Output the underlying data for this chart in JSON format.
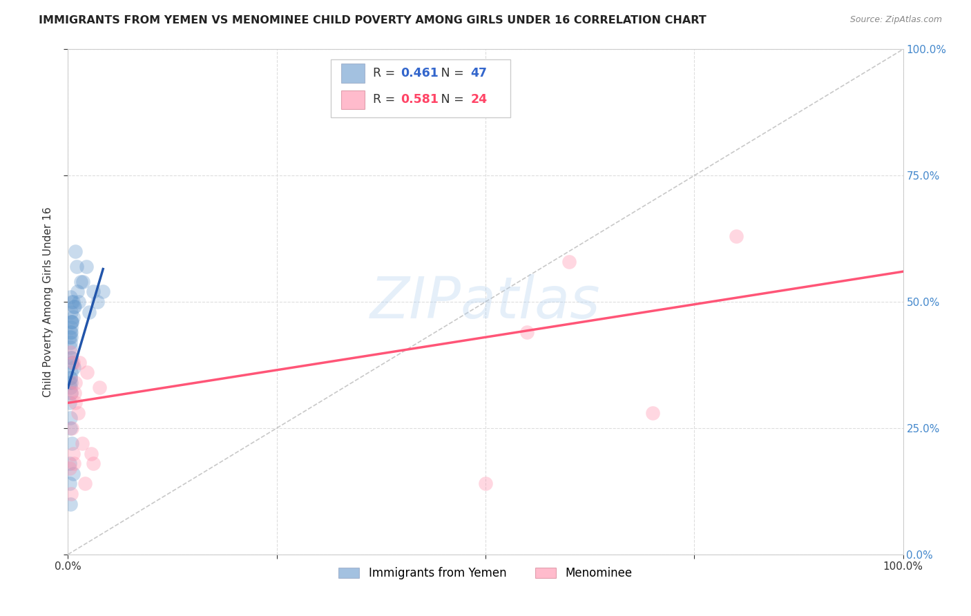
{
  "title": "IMMIGRANTS FROM YEMEN VS MENOMINEE CHILD POVERTY AMONG GIRLS UNDER 16 CORRELATION CHART",
  "source": "Source: ZipAtlas.com",
  "ylabel": "Child Poverty Among Girls Under 16",
  "xlim": [
    0,
    1.0
  ],
  "ylim": [
    0,
    1.0
  ],
  "blue_R": 0.461,
  "blue_N": 47,
  "pink_R": 0.581,
  "pink_N": 24,
  "legend_label_blue": "Immigrants from Yemen",
  "legend_label_pink": "Menominee",
  "blue_color": "#6699CC",
  "pink_color": "#FF8FAB",
  "blue_line_color": "#2255AA",
  "pink_line_color": "#FF5577",
  "axis_label_color": "#4488CC",
  "watermark": "ZIPatlas",
  "background_color": "#FFFFFF",
  "grid_color": "#DDDDDD",
  "blue_scatter_x": [
    0.003,
    0.004,
    0.005,
    0.002,
    0.003,
    0.004,
    0.006,
    0.007,
    0.005,
    0.003,
    0.004,
    0.004,
    0.003,
    0.002,
    0.003,
    0.005,
    0.004,
    0.004,
    0.003,
    0.002,
    0.003,
    0.004,
    0.006,
    0.009,
    0.01,
    0.011,
    0.013,
    0.015,
    0.018,
    0.022,
    0.025,
    0.03,
    0.035,
    0.042,
    0.003,
    0.005,
    0.008,
    0.004,
    0.005,
    0.004,
    0.002,
    0.002,
    0.003,
    0.006,
    0.003,
    0.004,
    0.007
  ],
  "blue_scatter_y": [
    0.44,
    0.48,
    0.46,
    0.43,
    0.42,
    0.45,
    0.47,
    0.49,
    0.5,
    0.51,
    0.43,
    0.36,
    0.33,
    0.3,
    0.25,
    0.22,
    0.34,
    0.39,
    0.41,
    0.34,
    0.35,
    0.46,
    0.5,
    0.6,
    0.57,
    0.52,
    0.5,
    0.54,
    0.54,
    0.57,
    0.48,
    0.52,
    0.5,
    0.52,
    0.27,
    0.38,
    0.49,
    0.44,
    0.46,
    0.39,
    0.18,
    0.14,
    0.1,
    0.16,
    0.35,
    0.32,
    0.37
  ],
  "pink_scatter_x": [
    0.003,
    0.004,
    0.005,
    0.006,
    0.007,
    0.009,
    0.012,
    0.017,
    0.023,
    0.028,
    0.002,
    0.004,
    0.006,
    0.008,
    0.009,
    0.014,
    0.02,
    0.03,
    0.038,
    0.5,
    0.55,
    0.6,
    0.7,
    0.8
  ],
  "pink_scatter_y": [
    0.4,
    0.32,
    0.25,
    0.2,
    0.18,
    0.34,
    0.28,
    0.22,
    0.36,
    0.2,
    0.17,
    0.12,
    0.38,
    0.32,
    0.3,
    0.38,
    0.14,
    0.18,
    0.33,
    0.14,
    0.44,
    0.58,
    0.28,
    0.63
  ],
  "blue_trendline_x": [
    0.0,
    0.042
  ],
  "blue_trendline_y": [
    0.33,
    0.565
  ],
  "pink_trendline_x": [
    0.0,
    1.0
  ],
  "pink_trendline_y": [
    0.3,
    0.56
  ],
  "diag_line_x": [
    0.0,
    1.0
  ],
  "diag_line_y": [
    0.0,
    1.0
  ]
}
